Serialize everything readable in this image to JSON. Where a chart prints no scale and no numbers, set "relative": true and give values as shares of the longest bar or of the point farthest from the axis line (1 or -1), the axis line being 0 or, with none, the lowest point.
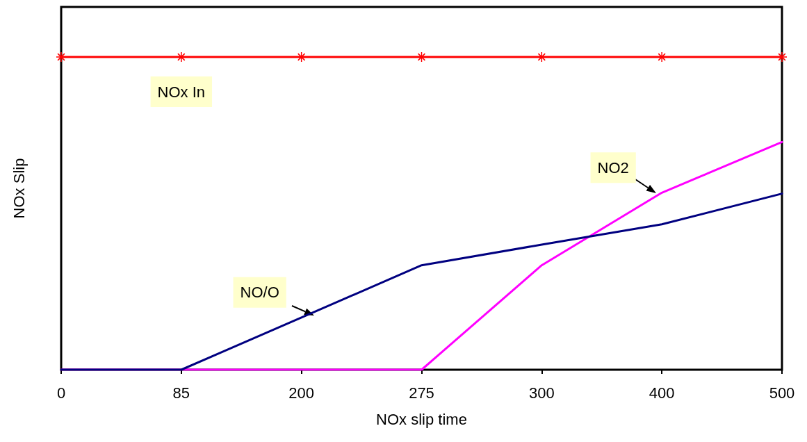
{
  "chart_data": {
    "type": "line",
    "xlabel": "NOx slip time",
    "ylabel": "NOx Slip",
    "relative": true,
    "grid": false,
    "legend": false,
    "categories": [
      "0",
      "85",
      "200",
      "275",
      "300",
      "400",
      "500"
    ],
    "series": [
      {
        "name": "NOx In",
        "color": "#ff0000",
        "marker": "cross",
        "values": [
          1,
          1,
          1,
          1,
          1,
          1,
          1
        ]
      },
      {
        "name": "NO/O",
        "color": "#000080",
        "marker": "none",
        "values": [
          0,
          0,
          0.167,
          0.334,
          0.4,
          0.465,
          0.563
        ]
      },
      {
        "name": "NO2",
        "color": "#ff00ff",
        "marker": "none",
        "values": [
          0,
          0,
          0,
          0,
          0.334,
          0.566,
          0.728
        ]
      }
    ]
  }
}
